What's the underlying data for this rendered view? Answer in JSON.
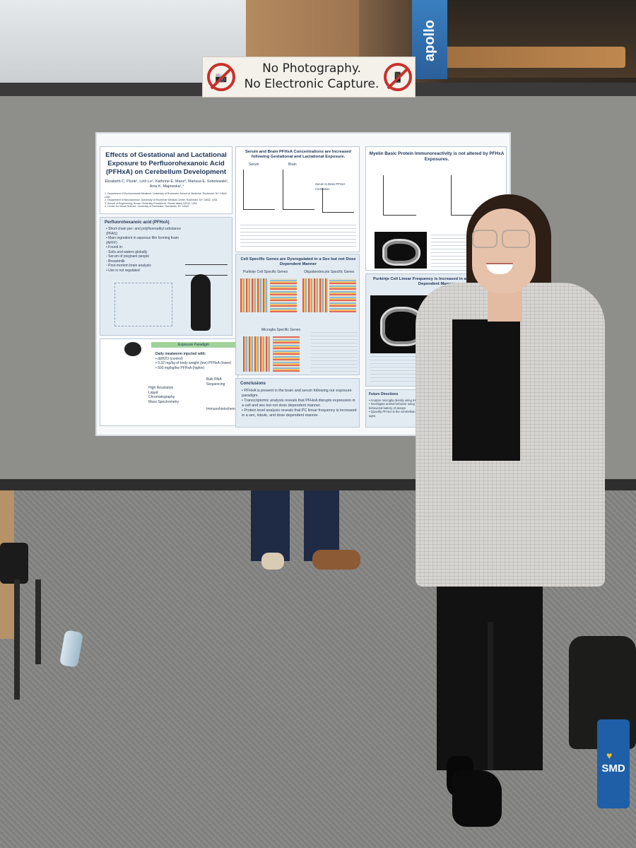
{
  "scene": {
    "banner_text": "apollo",
    "sign": {
      "line1": "No Photography.",
      "line2": "No Electronic Capture."
    },
    "tumbler_text": "SMD"
  },
  "poster": {
    "title": "Effects of Gestational and Lactational Exposure to Perfluorohexanoic Acid (PFHxA) on Cerebellum Development",
    "authors": "Elizabeth C. Plunk¹, Linh Le², Kathrine E. Manz³, Marissa E. Sobolewski¹, Ania K. Majewska¹,⁴",
    "affiliations": [
      "1. Department of Environmental Medicine, University of Rochester School of Medicine, Rochester, NY 14642, USA",
      "2. Department of Neuroscience, University of Rochester Medical Center, Rochester, NY 14642, USA",
      "3. School of Engineering, Brown University Providence, Rhode Island 02912, USA",
      "4. Center for Visual Science, University of Rochester, Rochester, NY 14642"
    ],
    "pfhxa_heading": "Perfluorohexanoic acid (PFHxA)",
    "pfhxa_items": [
      "• Short-chain per- and polyfluoroalkyl substance (PFAS)",
      "• Main ingredient in aqueous film forming foam (AFFF)",
      "• Found in:",
      "     ◦ Soils and waters globally",
      "     ◦ Serum of pregnant people",
      "     ◦ Breastmilk",
      "     ◦ Post-mortem brain analysis",
      "• Use is not regulated"
    ],
    "serum_heading": "Serum and Brain PFHxA Concentrations are Increased following Gestational and Lactational Exposure.",
    "serum_label": "Serum",
    "brain_label": "Brain",
    "correlation_label": "Serum to Brain PFHxA Correlation",
    "mbp_heading": "Myelin Basic Protein Immunoreactivity is not altered by PFHxA Exposures.",
    "cell_heading": "Cell Specific Genes are Dysregulated in a Sex but not Dose Dependent Manner",
    "purkinje_genes": "Purkinje Cell Specific Genes",
    "oligo_genes": "Oligodendrocyte Specific Genes",
    "microglia_genes": "Microglia Specific Genes",
    "linear_heading": "Purkinje Cell Linear Frequency is Increased in a Lobule and Dose Dependent Manner",
    "paradigm_heading": "Exposure Paradigm",
    "paradigm_items": [
      "Daily mealworm injected with:",
      "• ddH2O (control)",
      "• 0.32 mg/kg of body weight (low) PFHxA (lower)",
      "• 500 mg/kg/kw PFHxA (higher)"
    ],
    "bulk_rna": "Bulk RNA Sequencing",
    "mass_spec": "High Resolution Liquid Chromatography Mass Spectrometry",
    "immuno": "Immunohistochemistry",
    "conclusions_heading": "Conclusions",
    "conclusions": [
      "• PFHxA is present in the brain and serum following our exposure paradigm.",
      "• Transcriptomic analysis reveals that PFHxA disrupts expression in a cell and sex but not dose dependent manner.",
      "• Protein level analysis reveals that PC linear frequency is increased in a sex, lobule, and dose dependent manner."
    ],
    "future_heading": "Future Directions",
    "future": [
      "• Analyze microglia density using IHC",
      "• Investigate animal behavior using a broad behavioral battery of assays",
      "• Quantify PFHxA in the cerebellum at multiple ages."
    ]
  }
}
